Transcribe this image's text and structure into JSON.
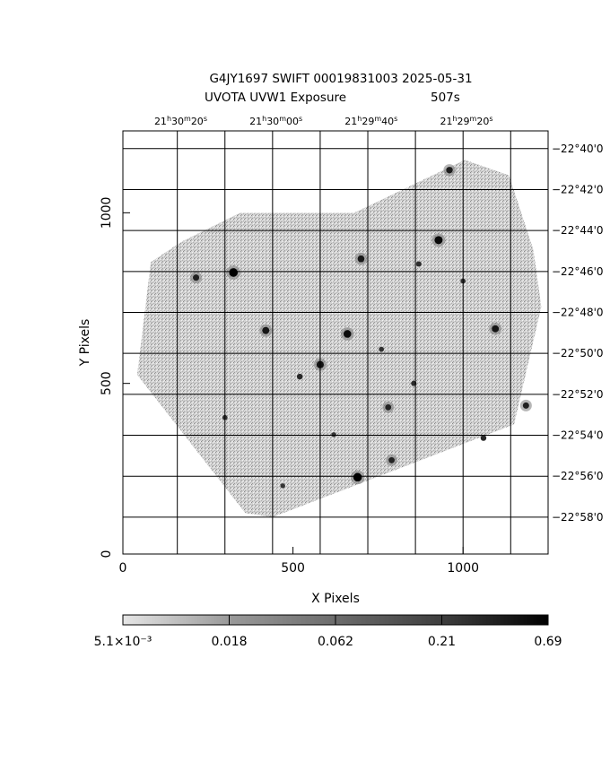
{
  "header": {
    "line1": "G4JY1697 SWIFT 00019831003 2025-05-31",
    "line2_prefix": "UVOTA UVW1 Exposure",
    "line2_exposure": "507s"
  },
  "chart_data": {
    "type": "heatmap",
    "xlabel": "X Pixels",
    "ylabel": "Y Pixels",
    "xlim": [
      0,
      1250
    ],
    "ylim": [
      0,
      1240
    ],
    "x_ticks": [
      0,
      500,
      1000
    ],
    "y_ticks": [
      0,
      500,
      1000
    ],
    "x_tick_labels": [
      "0",
      "500",
      "1000"
    ],
    "y_tick_labels": [
      "0",
      "500",
      "1000"
    ],
    "x_grid_lines": [
      160,
      300,
      440,
      580,
      720,
      860,
      1000,
      1140
    ],
    "y_grid_lines": [
      108,
      228,
      348,
      468,
      588,
      708,
      828,
      948,
      1068,
      1188
    ],
    "grid": true,
    "ra_ticks": [
      {
        "h": "21",
        "m": "30",
        "s": "20",
        "x": 170
      },
      {
        "h": "21",
        "m": "30",
        "s": "00",
        "x": 450
      },
      {
        "h": "21",
        "m": "29",
        "s": "40",
        "x": 730
      },
      {
        "h": "21",
        "m": "29",
        "s": "20",
        "x": 1010
      }
    ],
    "dec_ticks": [
      {
        "label": "−22°40'0",
        "y": 1188
      },
      {
        "label": "−22°42'0",
        "y": 1068
      },
      {
        "label": "−22°44'0",
        "y": 948
      },
      {
        "label": "−22°46'0",
        "y": 828
      },
      {
        "label": "−22°48'0",
        "y": 708
      },
      {
        "label": "−22°50'0",
        "y": 588
      },
      {
        "label": "−22°52'0",
        "y": 468
      },
      {
        "label": "−22°54'0",
        "y": 348
      },
      {
        "label": "−22°56'0",
        "y": 228
      },
      {
        "label": "−22°58'0",
        "y": 108
      }
    ],
    "exposure_footprint": [
      [
        345,
        1000
      ],
      [
        680,
        1000
      ],
      [
        1005,
        1155
      ],
      [
        1135,
        1110
      ],
      [
        1207,
        890
      ],
      [
        1230,
        725
      ],
      [
        1150,
        380
      ],
      [
        440,
        108
      ],
      [
        360,
        120
      ],
      [
        42,
        525
      ],
      [
        82,
        855
      ],
      [
        172,
        915
      ]
    ],
    "sources": [
      {
        "x": 325,
        "y": 825,
        "flux": 0.69
      },
      {
        "x": 690,
        "y": 225,
        "flux": 0.69
      },
      {
        "x": 928,
        "y": 920,
        "flux": 0.45
      },
      {
        "x": 660,
        "y": 645,
        "flux": 0.35
      },
      {
        "x": 580,
        "y": 555,
        "flux": 0.25
      },
      {
        "x": 420,
        "y": 655,
        "flux": 0.21
      },
      {
        "x": 1095,
        "y": 660,
        "flux": 0.21
      },
      {
        "x": 700,
        "y": 865,
        "flux": 0.18
      },
      {
        "x": 960,
        "y": 1125,
        "flux": 0.15
      },
      {
        "x": 215,
        "y": 810,
        "flux": 0.12
      },
      {
        "x": 1185,
        "y": 435,
        "flux": 0.12
      },
      {
        "x": 780,
        "y": 430,
        "flux": 0.1
      },
      {
        "x": 790,
        "y": 275,
        "flux": 0.1
      },
      {
        "x": 520,
        "y": 520,
        "flux": 0.08
      },
      {
        "x": 1060,
        "y": 340,
        "flux": 0.08
      },
      {
        "x": 855,
        "y": 500,
        "flux": 0.06
      },
      {
        "x": 870,
        "y": 850,
        "flux": 0.06
      },
      {
        "x": 300,
        "y": 400,
        "flux": 0.05
      },
      {
        "x": 760,
        "y": 600,
        "flux": 0.05
      },
      {
        "x": 1000,
        "y": 800,
        "flux": 0.05
      },
      {
        "x": 470,
        "y": 200,
        "flux": 0.04
      },
      {
        "x": 620,
        "y": 350,
        "flux": 0.04
      }
    ],
    "colorbar": {
      "tick_labels": [
        "5.1×10⁻³",
        "0.018",
        "0.062",
        "0.21",
        "0.69"
      ],
      "scale": "log",
      "range": [
        0.0051,
        0.69
      ]
    }
  }
}
